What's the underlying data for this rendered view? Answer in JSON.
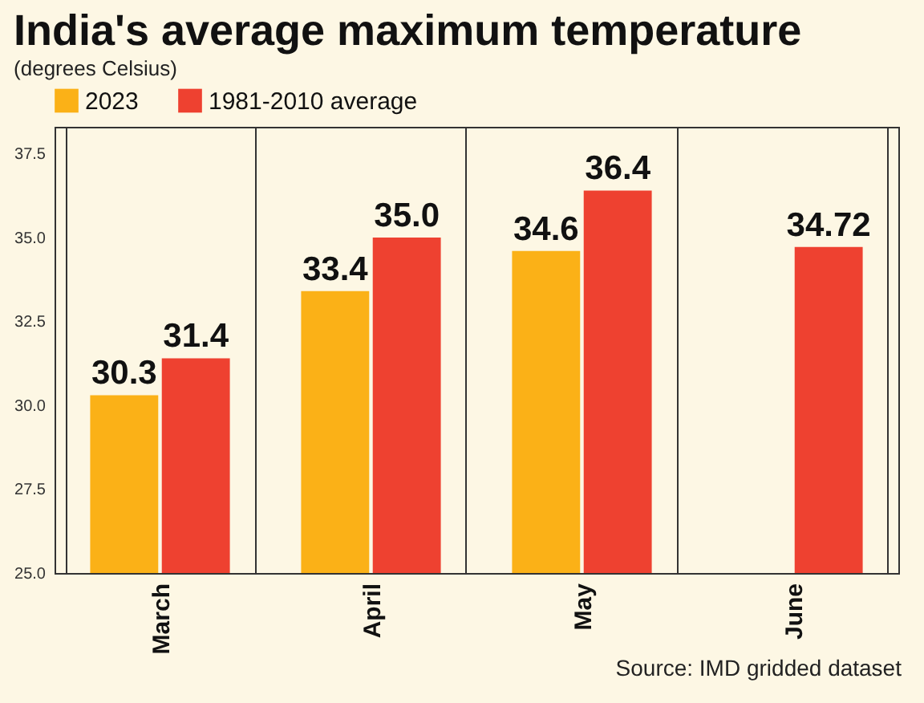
{
  "chart_data": {
    "type": "bar",
    "title": "India's average maximum temperature",
    "subtitle": "(degrees Celsius)",
    "categories": [
      "March",
      "April",
      "May",
      "June"
    ],
    "series": [
      {
        "name": "2023",
        "color": "#fbb117",
        "values": [
          30.3,
          33.4,
          34.6,
          null
        ],
        "value_labels": [
          "30.3",
          "33.4",
          "34.6",
          null
        ]
      },
      {
        "name": "1981-2010 average",
        "color": "#ee4130",
        "values": [
          31.4,
          35.0,
          36.4,
          34.72
        ],
        "value_labels": [
          "31.4",
          "35.0",
          "36.4",
          "34.72"
        ]
      }
    ],
    "ylim": [
      25,
      38.3
    ],
    "yticks": [
      {
        "value": 25,
        "label": "25.0"
      },
      {
        "value": 27.5,
        "label": "27.5"
      },
      {
        "value": 30,
        "label": "30.0"
      },
      {
        "value": 32.5,
        "label": "32.5"
      },
      {
        "value": 35,
        "label": "35.0"
      },
      {
        "value": 37.5,
        "label": "37.5"
      }
    ],
    "grid": "x",
    "legend": "top left",
    "annotations": [
      "Source: IMD gridded dataset"
    ]
  }
}
